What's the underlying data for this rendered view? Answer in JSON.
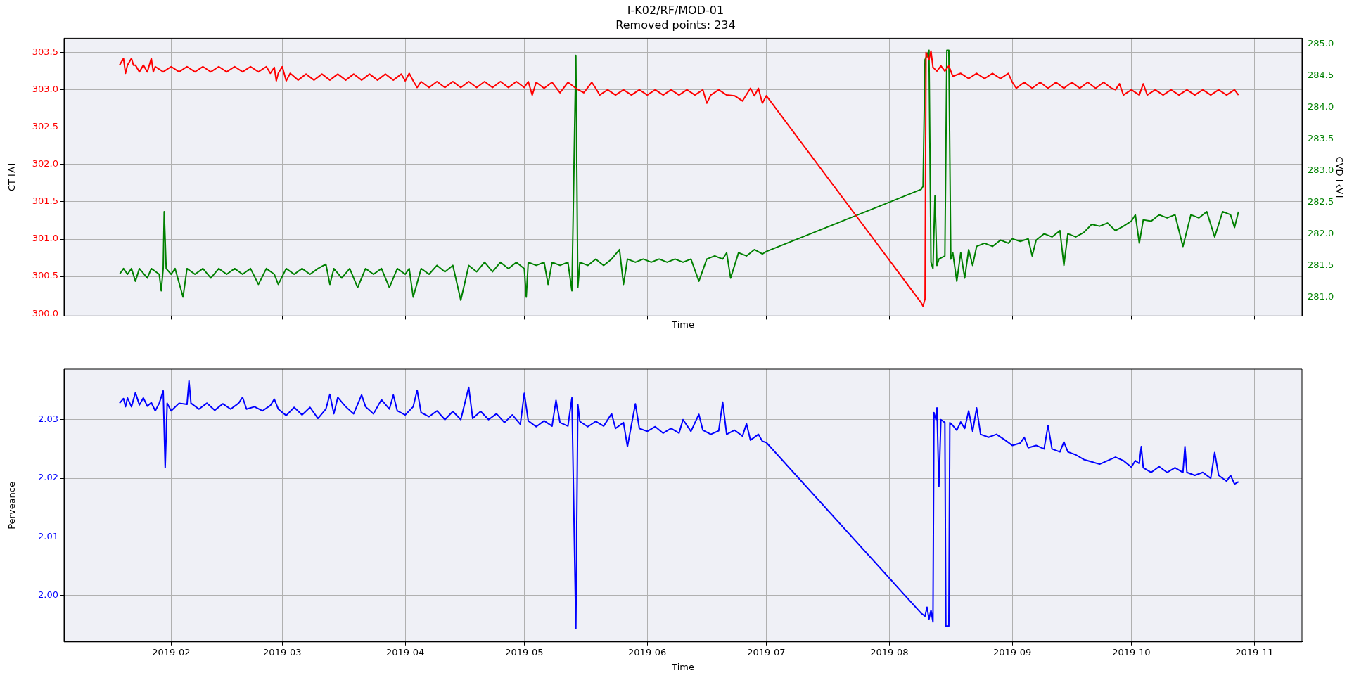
{
  "chart_data": [
    {
      "type": "line",
      "title": "I-K02/RF/MOD-01",
      "subtitle": "Removed points: 234",
      "xlabel": "Time",
      "ylabel": "CT [A]",
      "y2label": "CVD [kV]",
      "grid": true,
      "tick_labels": "y",
      "xlim": [
        "2019-01-05",
        "2019-11-13"
      ],
      "xticks": [
        "2019-02",
        "2019-03",
        "2019-04",
        "2019-05",
        "2019-06",
        "2019-07",
        "2019-08",
        "2019-09",
        "2019-10",
        "2019-11"
      ],
      "ylim": [
        299.97,
        303.69
      ],
      "yticks": [
        {
          "value": 300,
          "label": "300.0"
        },
        {
          "value": 300.5,
          "label": "300.5"
        },
        {
          "value": 301,
          "label": "301.0"
        },
        {
          "value": 301.5,
          "label": "301.5"
        },
        {
          "value": 302,
          "label": "302.0"
        },
        {
          "value": 302.5,
          "label": "302.5"
        },
        {
          "value": 303,
          "label": "303.0"
        },
        {
          "value": 303.5,
          "label": "303.5"
        }
      ],
      "y2lim": [
        280.7,
        285.09
      ],
      "y2ticks": [
        {
          "value": 281,
          "label": "281.0"
        },
        {
          "value": 281.5,
          "label": "281.5"
        },
        {
          "value": 282,
          "label": "282.0"
        },
        {
          "value": 282.5,
          "label": "282.5"
        },
        {
          "value": 283,
          "label": "283.0"
        },
        {
          "value": 283.5,
          "label": "283.5"
        },
        {
          "value": 284,
          "label": "284.0"
        },
        {
          "value": 284.5,
          "label": "284.5"
        },
        {
          "value": 285,
          "label": "285.0"
        }
      ],
      "series": [
        {
          "color": "#ff0000",
          "x": [
            "2019-01-19",
            "2019-01-20",
            "2019-01-20T12:00",
            "2019-01-21",
            "2019-01-22",
            "2019-01-22T12:00",
            "2019-01-23",
            "2019-01-24",
            "2019-01-25",
            "2019-01-26",
            "2019-01-27",
            "2019-01-27T12:00",
            "2019-01-28",
            "2019-01-30",
            "2019-02-01",
            "2019-02-03",
            "2019-02-05",
            "2019-02-07",
            "2019-02-09",
            "2019-02-11",
            "2019-02-13",
            "2019-02-15",
            "2019-02-17",
            "2019-02-19",
            "2019-02-21",
            "2019-02-23",
            "2019-02-25",
            "2019-02-26",
            "2019-02-27",
            "2019-02-27T12:00",
            "2019-02-28",
            "2019-03-01",
            "2019-03-02",
            "2019-03-03",
            "2019-03-05",
            "2019-03-07",
            "2019-03-09",
            "2019-03-11",
            "2019-03-13",
            "2019-03-15",
            "2019-03-17",
            "2019-03-19",
            "2019-03-21",
            "2019-03-23",
            "2019-03-25",
            "2019-03-27",
            "2019-03-29",
            "2019-03-31",
            "2019-04-01",
            "2019-04-02",
            "2019-04-03",
            "2019-04-04",
            "2019-04-05",
            "2019-04-07",
            "2019-04-09",
            "2019-04-11",
            "2019-04-13",
            "2019-04-15",
            "2019-04-17",
            "2019-04-19",
            "2019-04-21",
            "2019-04-23",
            "2019-04-25",
            "2019-04-27",
            "2019-04-29",
            "2019-05-01",
            "2019-05-02",
            "2019-05-03",
            "2019-05-04",
            "2019-05-06",
            "2019-05-08",
            "2019-05-10",
            "2019-05-12",
            "2019-05-14",
            "2019-05-16",
            "2019-05-18",
            "2019-05-19",
            "2019-05-20",
            "2019-05-22",
            "2019-05-24",
            "2019-05-26",
            "2019-05-28",
            "2019-05-30",
            "2019-06-01",
            "2019-06-03",
            "2019-06-05",
            "2019-06-07",
            "2019-06-09",
            "2019-06-11",
            "2019-06-13",
            "2019-06-15",
            "2019-06-16",
            "2019-06-17",
            "2019-06-19",
            "2019-06-21",
            "2019-06-23",
            "2019-06-25",
            "2019-06-27",
            "2019-06-28",
            "2019-06-29",
            "2019-06-30",
            "2019-07-01",
            "2019-08-09",
            "2019-08-09T12:00",
            "2019-08-10",
            "2019-08-10T06:00",
            "2019-08-11",
            "2019-08-11T12:00",
            "2019-08-12",
            "2019-08-13",
            "2019-08-14",
            "2019-08-15",
            "2019-08-16",
            "2019-08-17",
            "2019-08-19",
            "2019-08-21",
            "2019-08-23",
            "2019-08-25",
            "2019-08-27",
            "2019-08-29",
            "2019-08-31",
            "2019-09-01",
            "2019-09-02",
            "2019-09-04",
            "2019-09-06",
            "2019-09-08",
            "2019-09-10",
            "2019-09-12",
            "2019-09-14",
            "2019-09-16",
            "2019-09-18",
            "2019-09-20",
            "2019-09-22",
            "2019-09-24",
            "2019-09-26",
            "2019-09-27",
            "2019-09-28",
            "2019-09-29",
            "2019-10-01",
            "2019-10-03",
            "2019-10-04",
            "2019-10-05",
            "2019-10-07",
            "2019-10-09",
            "2019-10-11",
            "2019-10-13",
            "2019-10-15",
            "2019-10-17",
            "2019-10-19",
            "2019-10-21",
            "2019-10-23",
            "2019-10-25",
            "2019-10-27",
            "2019-10-28"
          ],
          "values": [
            303.33,
            303.42,
            303.22,
            303.33,
            303.42,
            303.33,
            303.33,
            303.24,
            303.33,
            303.24,
            303.42,
            303.24,
            303.31,
            303.24,
            303.31,
            303.24,
            303.31,
            303.24,
            303.31,
            303.24,
            303.31,
            303.24,
            303.31,
            303.24,
            303.31,
            303.24,
            303.31,
            303.22,
            303.3,
            303.12,
            303.22,
            303.31,
            303.12,
            303.22,
            303.13,
            303.21,
            303.13,
            303.21,
            303.13,
            303.21,
            303.13,
            303.21,
            303.13,
            303.21,
            303.13,
            303.21,
            303.13,
            303.21,
            303.12,
            303.22,
            303.12,
            303.03,
            303.11,
            303.03,
            303.11,
            303.03,
            303.11,
            303.03,
            303.11,
            303.03,
            303.11,
            303.03,
            303.11,
            303.03,
            303.11,
            303.03,
            303.11,
            302.93,
            303.1,
            303.02,
            303.1,
            302.96,
            303.1,
            303.02,
            302.96,
            303.1,
            303.02,
            302.93,
            303.0,
            302.93,
            303.0,
            302.93,
            303.0,
            302.93,
            303.0,
            302.93,
            303.0,
            302.93,
            303.0,
            302.93,
            303.0,
            302.82,
            302.93,
            303.0,
            302.93,
            302.92,
            302.85,
            303.02,
            302.92,
            303.02,
            302.82,
            302.92,
            300.15,
            300.1,
            300.2,
            303.5,
            303.4,
            303.52,
            303.3,
            303.25,
            303.32,
            303.25,
            303.32,
            303.18,
            303.22,
            303.15,
            303.22,
            303.15,
            303.22,
            303.15,
            303.22,
            303.1,
            303.02,
            303.1,
            303.02,
            303.1,
            303.02,
            303.1,
            303.02,
            303.1,
            303.02,
            303.1,
            303.02,
            303.1,
            303.02,
            303.0,
            303.08,
            302.93,
            303.0,
            302.93,
            303.08,
            302.93,
            303.0,
            302.93,
            303.0,
            302.93,
            303.0,
            302.93,
            303.0,
            302.93,
            303.0,
            302.93,
            303.0,
            302.93
          ]
        },
        {
          "color": "#008000",
          "axis": "y2",
          "x": [
            "2019-01-19",
            "2019-01-20",
            "2019-01-21",
            "2019-01-22",
            "2019-01-23",
            "2019-01-24",
            "2019-01-26",
            "2019-01-27",
            "2019-01-29",
            "2019-01-29T12:00",
            "2019-01-30",
            "2019-01-30T06:00",
            "2019-01-30T18:00",
            "2019-02-01",
            "2019-02-02",
            "2019-02-04",
            "2019-02-05",
            "2019-02-07",
            "2019-02-09",
            "2019-02-11",
            "2019-02-13",
            "2019-02-15",
            "2019-02-17",
            "2019-02-19",
            "2019-02-21",
            "2019-02-23",
            "2019-02-25",
            "2019-02-27",
            "2019-02-28",
            "2019-03-02",
            "2019-03-04",
            "2019-03-06",
            "2019-03-08",
            "2019-03-10",
            "2019-03-12",
            "2019-03-13",
            "2019-03-14",
            "2019-03-16",
            "2019-03-18",
            "2019-03-20",
            "2019-03-22",
            "2019-03-24",
            "2019-03-26",
            "2019-03-28",
            "2019-03-30",
            "2019-04-01",
            "2019-04-02",
            "2019-04-03",
            "2019-04-05",
            "2019-04-07",
            "2019-04-09",
            "2019-04-11",
            "2019-04-13",
            "2019-04-15",
            "2019-04-17",
            "2019-04-19",
            "2019-04-21",
            "2019-04-23",
            "2019-04-25",
            "2019-04-27",
            "2019-04-29",
            "2019-05-01",
            "2019-05-01T12:00",
            "2019-05-02",
            "2019-05-04",
            "2019-05-06",
            "2019-05-07",
            "2019-05-08",
            "2019-05-10",
            "2019-05-12",
            "2019-05-13",
            "2019-05-14",
            "2019-05-14T12:00",
            "2019-05-15",
            "2019-05-17",
            "2019-05-19",
            "2019-05-21",
            "2019-05-23",
            "2019-05-25",
            "2019-05-26",
            "2019-05-27",
            "2019-05-29",
            "2019-05-31",
            "2019-06-02",
            "2019-06-04",
            "2019-06-06",
            "2019-06-08",
            "2019-06-10",
            "2019-06-12",
            "2019-06-14",
            "2019-06-16",
            "2019-06-18",
            "2019-06-20",
            "2019-06-21",
            "2019-06-22",
            "2019-06-24",
            "2019-06-26",
            "2019-06-28",
            "2019-06-30",
            "2019-07-01",
            "2019-08-09",
            "2019-08-09T12:00",
            "2019-08-10",
            "2019-08-10T12:00",
            "2019-08-11",
            "2019-08-11T12:00",
            "2019-08-12",
            "2019-08-12T12:00",
            "2019-08-13",
            "2019-08-13T12:00",
            "2019-08-15",
            "2019-08-15T12:00",
            "2019-08-16",
            "2019-08-16T12:00",
            "2019-08-17",
            "2019-08-18",
            "2019-08-19",
            "2019-08-20",
            "2019-08-21",
            "2019-08-22",
            "2019-08-23",
            "2019-08-25",
            "2019-08-27",
            "2019-08-29",
            "2019-08-31",
            "2019-09-01",
            "2019-09-03",
            "2019-09-05",
            "2019-09-06",
            "2019-09-07",
            "2019-09-09",
            "2019-09-11",
            "2019-09-13",
            "2019-09-14",
            "2019-09-15",
            "2019-09-17",
            "2019-09-19",
            "2019-09-21",
            "2019-09-23",
            "2019-09-25",
            "2019-09-27",
            "2019-09-29",
            "2019-10-01",
            "2019-10-02",
            "2019-10-03",
            "2019-10-04",
            "2019-10-06",
            "2019-10-08",
            "2019-10-10",
            "2019-10-12",
            "2019-10-14",
            "2019-10-16",
            "2019-10-18",
            "2019-10-20",
            "2019-10-22",
            "2019-10-24",
            "2019-10-26",
            "2019-10-27",
            "2019-10-28"
          ],
          "values": [
            281.36,
            281.45,
            281.36,
            281.45,
            281.25,
            281.45,
            281.3,
            281.45,
            281.36,
            281.1,
            281.45,
            282.35,
            281.45,
            281.36,
            281.45,
            281.0,
            281.45,
            281.36,
            281.45,
            281.3,
            281.45,
            281.36,
            281.45,
            281.36,
            281.45,
            281.2,
            281.45,
            281.36,
            281.2,
            281.45,
            281.36,
            281.45,
            281.36,
            281.45,
            281.52,
            281.2,
            281.45,
            281.3,
            281.45,
            281.15,
            281.45,
            281.36,
            281.45,
            281.15,
            281.45,
            281.36,
            281.45,
            281.0,
            281.45,
            281.36,
            281.5,
            281.4,
            281.5,
            280.95,
            281.5,
            281.4,
            281.55,
            281.4,
            281.55,
            281.45,
            281.55,
            281.45,
            281.0,
            281.55,
            281.5,
            281.55,
            281.2,
            281.55,
            281.5,
            281.55,
            281.1,
            284.82,
            281.15,
            281.55,
            281.5,
            281.6,
            281.5,
            281.6,
            281.75,
            281.2,
            281.6,
            281.55,
            281.6,
            281.55,
            281.6,
            281.55,
            281.6,
            281.55,
            281.6,
            281.25,
            281.6,
            281.65,
            281.6,
            281.7,
            281.3,
            281.7,
            281.65,
            281.75,
            281.68,
            281.72,
            282.7,
            282.75,
            284.75,
            284.82,
            284.9,
            281.55,
            281.45,
            282.6,
            281.5,
            281.6,
            281.65,
            284.9,
            284.9,
            281.6,
            281.7,
            281.25,
            281.7,
            281.3,
            281.75,
            281.5,
            281.8,
            281.85,
            281.8,
            281.9,
            281.85,
            281.92,
            281.88,
            281.92,
            281.65,
            281.9,
            282.0,
            281.95,
            282.05,
            281.5,
            282.0,
            281.95,
            282.02,
            282.15,
            282.12,
            282.17,
            282.05,
            282.12,
            282.2,
            282.3,
            281.85,
            282.22,
            282.2,
            282.3,
            282.25,
            282.3,
            281.8,
            282.3,
            282.25,
            282.35,
            281.95,
            282.35,
            282.3,
            282.1,
            282.35
          ]
        }
      ]
    },
    {
      "type": "line",
      "xlabel": "Time",
      "ylabel": "Perveance",
      "grid": true,
      "xlim": [
        "2019-01-05",
        "2019-11-13"
      ],
      "xticks": [
        "2019-02",
        "2019-03",
        "2019-04",
        "2019-05",
        "2019-06",
        "2019-07",
        "2019-08",
        "2019-09",
        "2019-10",
        "2019-11"
      ],
      "ylim": [
        1.9921,
        2.0386
      ],
      "yticks": [
        {
          "value": 2.0,
          "label": "2.00"
        },
        {
          "value": 2.01,
          "label": "2.01"
        },
        {
          "value": 2.02,
          "label": "2.02"
        },
        {
          "value": 2.03,
          "label": "2.03"
        }
      ],
      "series": [
        {
          "color": "#0000ff",
          "x": [
            "2019-01-19",
            "2019-01-20",
            "2019-01-20T12:00",
            "2019-01-21",
            "2019-01-22",
            "2019-01-23",
            "2019-01-24",
            "2019-01-25",
            "2019-01-26",
            "2019-01-27",
            "2019-01-28",
            "2019-01-29",
            "2019-01-30",
            "2019-01-30T12:00",
            "2019-01-31",
            "2019-02-01",
            "2019-02-03",
            "2019-02-05",
            "2019-02-05T12:00",
            "2019-02-06",
            "2019-02-08",
            "2019-02-10",
            "2019-02-12",
            "2019-02-14",
            "2019-02-16",
            "2019-02-18",
            "2019-02-19",
            "2019-02-20",
            "2019-02-22",
            "2019-02-24",
            "2019-02-26",
            "2019-02-27",
            "2019-02-28",
            "2019-03-02",
            "2019-03-04",
            "2019-03-06",
            "2019-03-08",
            "2019-03-10",
            "2019-03-12",
            "2019-03-13",
            "2019-03-14",
            "2019-03-15",
            "2019-03-17",
            "2019-03-19",
            "2019-03-21",
            "2019-03-22",
            "2019-03-24",
            "2019-03-26",
            "2019-03-28",
            "2019-03-29",
            "2019-03-30",
            "2019-04-01",
            "2019-04-03",
            "2019-04-04",
            "2019-04-05",
            "2019-04-07",
            "2019-04-09",
            "2019-04-11",
            "2019-04-13",
            "2019-04-15",
            "2019-04-17",
            "2019-04-18",
            "2019-04-20",
            "2019-04-22",
            "2019-04-24",
            "2019-04-26",
            "2019-04-28",
            "2019-04-30",
            "2019-05-01",
            "2019-05-02",
            "2019-05-04",
            "2019-05-06",
            "2019-05-08",
            "2019-05-09",
            "2019-05-10",
            "2019-05-12",
            "2019-05-13",
            "2019-05-14",
            "2019-05-14T12:00",
            "2019-05-15",
            "2019-05-17",
            "2019-05-19",
            "2019-05-21",
            "2019-05-23",
            "2019-05-24",
            "2019-05-26",
            "2019-05-27",
            "2019-05-28",
            "2019-05-29",
            "2019-05-30",
            "2019-06-01",
            "2019-06-03",
            "2019-06-05",
            "2019-06-07",
            "2019-06-09",
            "2019-06-10",
            "2019-06-12",
            "2019-06-14",
            "2019-06-15",
            "2019-06-17",
            "2019-06-19",
            "2019-06-20",
            "2019-06-21",
            "2019-06-23",
            "2019-06-25",
            "2019-06-26",
            "2019-06-27",
            "2019-06-29",
            "2019-06-30",
            "2019-07-01",
            "2019-08-09",
            "2019-08-10",
            "2019-08-10T12:00",
            "2019-08-11",
            "2019-08-11T12:00",
            "2019-08-12",
            "2019-08-12T06:00",
            "2019-08-12T18:00",
            "2019-08-13",
            "2019-08-13T12:00",
            "2019-08-14",
            "2019-08-15",
            "2019-08-15T06:00",
            "2019-08-16",
            "2019-08-16T06:00",
            "2019-08-17",
            "2019-08-18",
            "2019-08-19",
            "2019-08-20",
            "2019-08-21",
            "2019-08-22",
            "2019-08-23",
            "2019-08-24",
            "2019-08-26",
            "2019-08-28",
            "2019-08-30",
            "2019-09-01",
            "2019-09-03",
            "2019-09-04",
            "2019-09-05",
            "2019-09-07",
            "2019-09-09",
            "2019-09-10",
            "2019-09-11",
            "2019-09-13",
            "2019-09-14",
            "2019-09-15",
            "2019-09-17",
            "2019-09-19",
            "2019-09-21",
            "2019-09-23",
            "2019-09-25",
            "2019-09-27",
            "2019-09-29",
            "2019-10-01",
            "2019-10-02",
            "2019-10-03",
            "2019-10-03T12:00",
            "2019-10-04",
            "2019-10-06",
            "2019-10-08",
            "2019-10-10",
            "2019-10-12",
            "2019-10-14",
            "2019-10-14T12:00",
            "2019-10-15",
            "2019-10-17",
            "2019-10-19",
            "2019-10-21",
            "2019-10-22",
            "2019-10-23",
            "2019-10-25",
            "2019-10-26",
            "2019-10-27",
            "2019-10-28"
          ],
          "values": [
            2.0328,
            2.0336,
            2.0322,
            2.0337,
            2.0322,
            2.0346,
            2.0325,
            2.0337,
            2.0323,
            2.0329,
            2.0315,
            2.0328,
            2.0349,
            2.0218,
            2.0328,
            2.0315,
            2.0328,
            2.0326,
            2.0366,
            2.0328,
            2.0318,
            2.0328,
            2.0316,
            2.0327,
            2.0318,
            2.0328,
            2.0338,
            2.0318,
            2.0322,
            2.0315,
            2.0324,
            2.0335,
            2.0318,
            2.0307,
            2.0321,
            2.0308,
            2.0321,
            2.0302,
            2.0318,
            2.0343,
            2.031,
            2.0338,
            2.0322,
            2.031,
            2.0342,
            2.0322,
            2.031,
            2.0334,
            2.0318,
            2.0342,
            2.0315,
            2.0308,
            2.0322,
            2.035,
            2.0312,
            2.0305,
            2.0315,
            2.03,
            2.0314,
            2.03,
            2.0355,
            2.0302,
            2.0314,
            2.03,
            2.031,
            2.0295,
            2.0308,
            2.0292,
            2.0345,
            2.0298,
            2.0288,
            2.0298,
            2.0289,
            2.0333,
            2.0295,
            2.0289,
            2.0337,
            1.9944,
            2.0326,
            2.0297,
            2.0288,
            2.0297,
            2.0289,
            2.031,
            2.0285,
            2.0295,
            2.0254,
            2.0291,
            2.0327,
            2.0285,
            2.028,
            2.0288,
            2.0277,
            2.0285,
            2.0277,
            2.03,
            2.028,
            2.0309,
            2.0282,
            2.0275,
            2.0281,
            2.033,
            2.0275,
            2.0282,
            2.0272,
            2.0293,
            2.0265,
            2.0275,
            2.0263,
            2.0261,
            1.997,
            1.9965,
            1.998,
            1.996,
            1.9975,
            1.9955,
            2.0312,
            2.03,
            2.032,
            2.0186,
            2.03,
            2.0295,
            1.9948,
            1.9948,
            2.0295,
            2.029,
            2.0282,
            2.0296,
            2.0285,
            2.0315,
            2.028,
            2.032,
            2.0275,
            2.027,
            2.0275,
            2.0266,
            2.0256,
            2.026,
            2.027,
            2.0252,
            2.0256,
            2.025,
            2.029,
            2.025,
            2.0245,
            2.0262,
            2.0245,
            2.024,
            2.0232,
            2.0228,
            2.0224,
            2.023,
            2.0236,
            2.023,
            2.0219,
            2.023,
            2.0225,
            2.0254,
            2.0218,
            2.021,
            2.022,
            2.021,
            2.0218,
            2.021,
            2.0254,
            2.021,
            2.0205,
            2.021,
            2.02,
            2.0244,
            2.0205,
            2.0195,
            2.0205,
            2.019,
            2.0194
          ]
        }
      ]
    }
  ]
}
